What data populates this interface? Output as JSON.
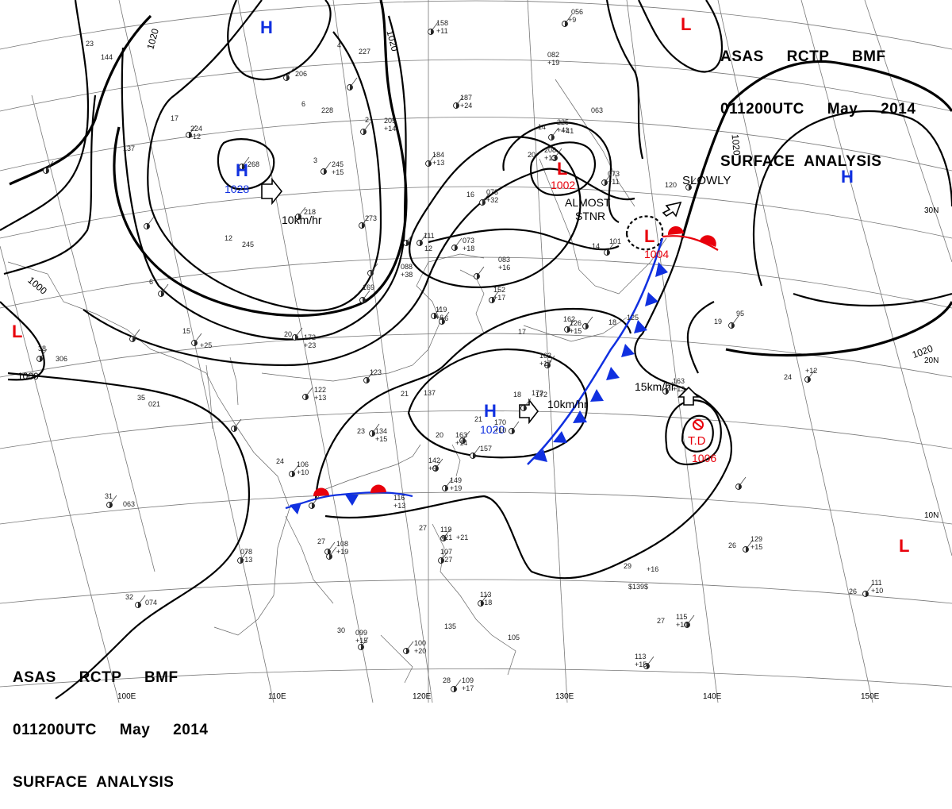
{
  "header": {
    "line1": "ASAS     RCTP     BMF",
    "line2": "011200UTC     May     2014",
    "line3": "SURFACE  ANALYSIS"
  },
  "colors": {
    "low": "#e8000b",
    "high": "#1030e0",
    "cold_front": "#1030e0",
    "warm_front": "#e8000b",
    "isobar": "#000000"
  },
  "lat_labels": {
    "lat30": "30N",
    "lat20": "20N",
    "lat10": "10N"
  },
  "lon_labels": {
    "lon100": "100E",
    "lon110": "110E",
    "lon120": "120E",
    "lon130": "130E",
    "lon140": "140E",
    "lon150": "150E"
  },
  "isobar_labels": {
    "i1020_a": "1020",
    "i1020_b": "1020",
    "i1000_a": "1000",
    "i1000_b": "1000",
    "i1020_c": "1020",
    "i1020_d": "1020"
  },
  "systems": {
    "high_mongolia": {
      "letter": "H",
      "value": "1028"
    },
    "high_north": {
      "letter": "H"
    },
    "high_south": {
      "letter": "H",
      "value": "1020"
    },
    "high_east": {
      "letter": "H"
    },
    "low_korea": {
      "letter": "L",
      "value": "1002"
    },
    "low_japan": {
      "letter": "L",
      "value": "1004"
    },
    "low_ne": {
      "letter": "L"
    },
    "low_west": {
      "letter": "L"
    },
    "low_se": {
      "letter": "L"
    },
    "td": {
      "letter": "T.D",
      "value": "1006"
    }
  },
  "motion": {
    "m1": "10km/hr",
    "m2": "10km/hr",
    "m3": "15km/hr",
    "m4": "SLOWLY",
    "m5a": "ALMOST",
    "m5b": "STNR"
  },
  "stations": {
    "s1": "158",
    "s2": "+11",
    "s3": "227",
    "s4": "206",
    "s5": "228",
    "s6": "205",
    "s7": "+14",
    "s8": "224",
    "s9": "-12",
    "s10": "137",
    "s11": "144",
    "s12": "268",
    "s13": "245",
    "s14": "+15",
    "s15": "218",
    "s16": "245",
    "s17": "273",
    "s18": "169",
    "s19": "172",
    "s20": "+23",
    "s21": "+25",
    "s22": "123",
    "s23": "122",
    "s24": "+13",
    "s25": "134",
    "s26": "+15",
    "s27": "106",
    "s28": "+10",
    "s29": "063",
    "s30": "078",
    "s31": "+13",
    "s32": "108",
    "s33": "+19",
    "s34": "074",
    "s35": "099",
    "s36": "+15",
    "s37": "100",
    "s38": "+20",
    "s39": "109",
    "s40": "+17",
    "s41": "184",
    "s42": "+13",
    "s43": "187",
    "s44": "+24",
    "s45": "073",
    "s46": "+32",
    "s47": "111",
    "s48": "073",
    "s49": "+18",
    "s50": "088",
    "s51": "+38",
    "s52": "083",
    "s53": "+16",
    "s54": "152",
    "s55": "+17",
    "s56": "119",
    "s57": "+6",
    "s58": "137",
    "s59": "163",
    "s60": "+14",
    "s61": "142",
    "s62": "+9",
    "s63": "157",
    "s64": "149",
    "s65": "+19",
    "s66": "116",
    "s67": "+13",
    "s68": "119",
    "s69": "+21",
    "s70": "107",
    "s71": "+27",
    "s72": "135",
    "s73": "113",
    "s74": "+18",
    "s75": "105",
    "s76": "172",
    "s77": "170",
    "s78": "+10",
    "s79": "163",
    "s80": "+17",
    "s81": "126",
    "s82": "+15",
    "s83": "125",
    "s84": "101",
    "s85": "073",
    "s86": "+11",
    "s87": "063",
    "s88": "208",
    "s89": "+13",
    "s90": "225",
    "s91": "+41",
    "s92": "056",
    "s93": "082",
    "s94": "+19",
    "s95": "120",
    "s96": "95",
    "s97": "163",
    "s98": "+13",
    "s99": "129",
    "s100": "+15",
    "s101": "111",
    "s102": "+10",
    "s103": "115",
    "s104": "+14",
    "s105": "113",
    "s106": "+15",
    "s107": "+16",
    "s108": "$139$",
    "s109": "306",
    "s110": "021",
    "s111": "172",
    "s112": "+12",
    "s113": "+41",
    "s114": "+9",
    "s115": "+21",
    "s116": "162",
    "s117": "+6"
  },
  "temps": {
    "t1": "23",
    "t2": "17",
    "t3": "4",
    "t4": "6",
    "t5": "2",
    "t6": "3",
    "t7": "12",
    "t8": "6",
    "t9": "15",
    "t10": "20",
    "t11": "23",
    "t12": "21",
    "t13": "24",
    "t14": "27",
    "t15": "31",
    "t16": "32",
    "t17": "30",
    "t18": "28",
    "t19": "35",
    "t20": "38",
    "t21": "16",
    "t22": "20",
    "t23": "14",
    "t24": "19",
    "t25": "26",
    "t26": "24",
    "t27": "29",
    "t28": "27",
    "t29": "26",
    "t30": "20",
    "t31": "18",
    "t32": "21",
    "t33": "27",
    "t34": "17",
    "t35": "14",
    "t36": "12",
    "t37": "18"
  }
}
